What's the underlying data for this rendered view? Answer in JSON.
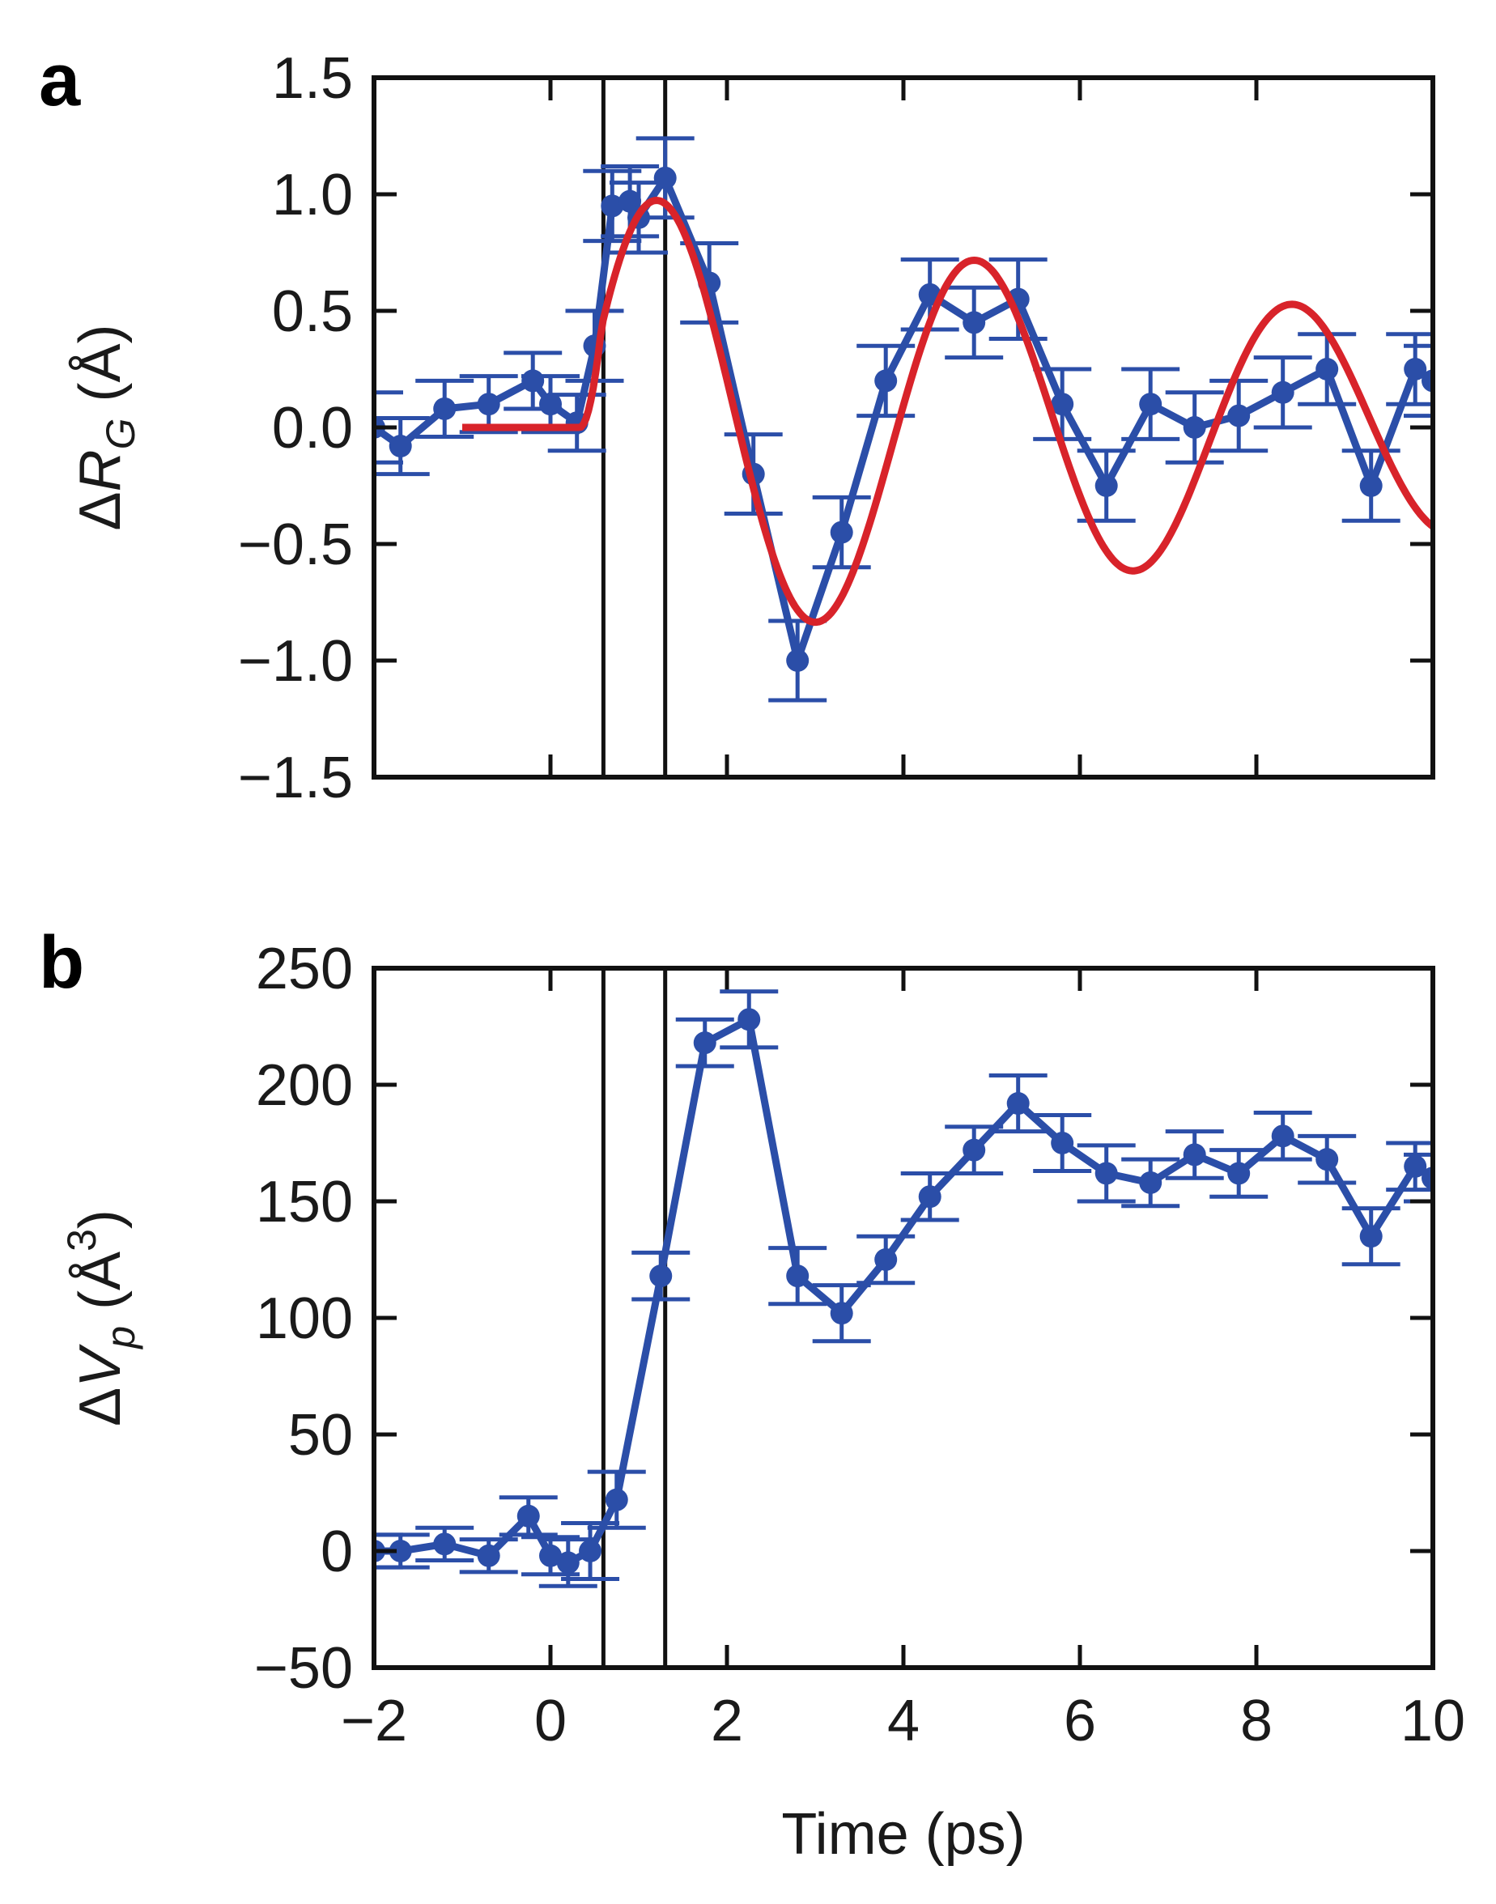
{
  "colors": {
    "data": "#2b4ea8",
    "fit": "#d8232a",
    "axis": "#111111"
  },
  "xaxis_shared": {
    "label": "Time (ps)",
    "ticks": [
      -2,
      0,
      2,
      4,
      6,
      8,
      10
    ],
    "tick_labels": [
      "−2",
      "0",
      "2",
      "4",
      "6",
      "8",
      "10"
    ]
  },
  "chart_data": [
    {
      "panel": "a",
      "type": "line",
      "xlim": [
        -2,
        10
      ],
      "ylim": [
        -1.5,
        1.5
      ],
      "ylabel_prefix": "Δ",
      "ylabel_var": "R",
      "ylabel_sub": "G",
      "ylabel_unit": " (Å)",
      "yticks": [
        -1.5,
        -1.0,
        -0.5,
        0.0,
        0.5,
        1.0,
        1.5
      ],
      "ytick_labels": [
        "−1.5",
        "−1.0",
        "−0.5",
        "0.0",
        "0.5",
        "1.0",
        "1.5"
      ],
      "vlines": [
        0.6,
        1.3
      ],
      "series": [
        {
          "name": "data",
          "x": [
            -2.0,
            -1.7,
            -1.2,
            -0.7,
            -0.2,
            0.0,
            0.3,
            0.5,
            0.7,
            0.9,
            1.0,
            1.3,
            1.8,
            2.3,
            2.8,
            3.3,
            3.8,
            4.3,
            4.8,
            5.3,
            5.8,
            6.3,
            6.8,
            7.3,
            7.8,
            8.3,
            8.8,
            9.3,
            9.8,
            10.0
          ],
          "y": [
            0.0,
            -0.08,
            0.08,
            0.1,
            0.2,
            0.1,
            0.02,
            0.35,
            0.95,
            0.97,
            0.9,
            1.07,
            0.62,
            -0.2,
            -1.0,
            -0.45,
            0.2,
            0.57,
            0.45,
            0.55,
            0.1,
            -0.25,
            0.1,
            0.0,
            0.05,
            0.15,
            0.25,
            -0.25,
            0.25,
            0.2
          ],
          "err": [
            0.15,
            0.12,
            0.12,
            0.12,
            0.12,
            0.12,
            0.12,
            0.15,
            0.15,
            0.15,
            0.15,
            0.17,
            0.17,
            0.17,
            0.17,
            0.15,
            0.15,
            0.15,
            0.15,
            0.17,
            0.15,
            0.15,
            0.15,
            0.15,
            0.15,
            0.15,
            0.15,
            0.15,
            0.15,
            0.15
          ]
        },
        {
          "name": "fit",
          "model": "damped_sine",
          "x_start": -1.0,
          "onset": 0.33,
          "amplitude": 1.05,
          "period": 3.6,
          "decay": 0.085,
          "x_end": 10.0
        }
      ]
    },
    {
      "panel": "b",
      "type": "line",
      "xlim": [
        -2,
        10
      ],
      "ylim": [
        -50,
        250
      ],
      "ylabel_prefix": "Δ",
      "ylabel_var": "V",
      "ylabel_sub": "p",
      "ylabel_unit": " (Å",
      "ylabel_sup": "3",
      "ylabel_close": ")",
      "yticks": [
        -50,
        0,
        50,
        100,
        150,
        200,
        250
      ],
      "ytick_labels": [
        "−50",
        "0",
        "50",
        "100",
        "150",
        "200",
        "250"
      ],
      "vlines": [
        0.6,
        1.3
      ],
      "series": [
        {
          "name": "data",
          "x": [
            -2.0,
            -1.7,
            -1.2,
            -0.7,
            -0.25,
            0.0,
            0.2,
            0.45,
            0.75,
            1.25,
            1.75,
            2.25,
            2.8,
            3.3,
            3.8,
            4.3,
            4.8,
            5.3,
            5.8,
            6.3,
            6.8,
            7.3,
            7.8,
            8.3,
            8.8,
            9.3,
            9.8,
            10.0
          ],
          "y": [
            0,
            0,
            3,
            -2,
            15,
            -2,
            -5,
            0,
            22,
            118,
            218,
            228,
            118,
            102,
            125,
            152,
            172,
            192,
            175,
            162,
            158,
            170,
            162,
            178,
            168,
            135,
            165,
            160
          ],
          "err": [
            7,
            7,
            7,
            7,
            8,
            8,
            10,
            12,
            12,
            10,
            10,
            12,
            12,
            12,
            10,
            10,
            10,
            12,
            12,
            12,
            10,
            10,
            10,
            10,
            10,
            12,
            10,
            10
          ]
        }
      ]
    }
  ]
}
